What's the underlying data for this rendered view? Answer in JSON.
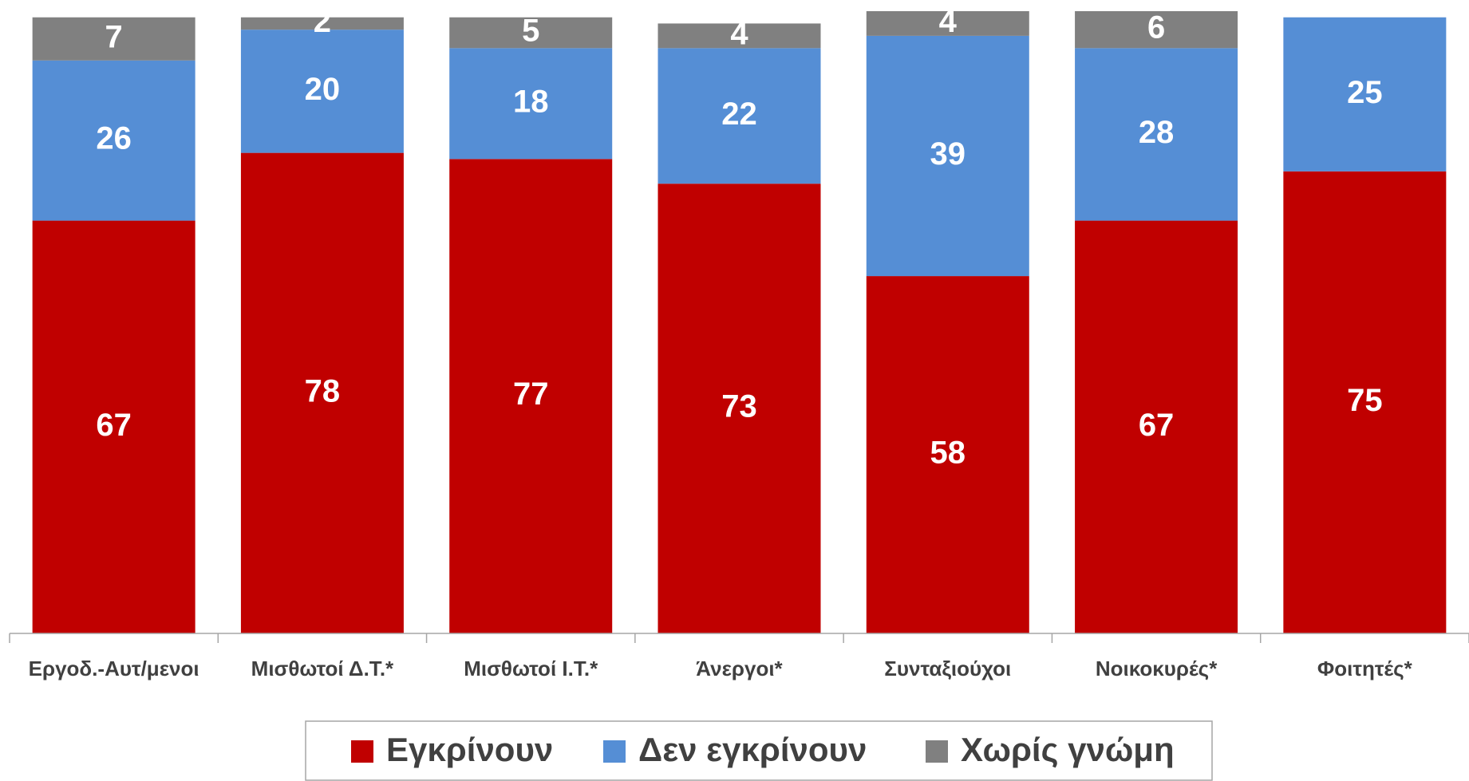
{
  "chart_data": {
    "type": "stacked_bar",
    "categories": [
      "Εργοδ.-Αυτ/μενοι",
      "Μισθωτοί Δ.Τ.*",
      "Μισθωτοί Ι.Τ.*",
      "Άνεργοι*",
      "Συνταξιούχοι",
      "Νοικοκυρές*",
      "Φοιτητές*"
    ],
    "series": [
      {
        "name": "Εγκρίνουν",
        "color": "#c00000",
        "values": [
          67,
          78,
          77,
          73,
          58,
          67,
          75
        ]
      },
      {
        "name": "Δεν εγκρίνουν",
        "color": "#558ed5",
        "values": [
          26,
          20,
          18,
          22,
          39,
          28,
          25
        ]
      },
      {
        "name": "Χωρίς γνώμη",
        "color": "#808080",
        "values": [
          7,
          2,
          5,
          4,
          4,
          6,
          null
        ]
      }
    ],
    "legend": "bottom"
  }
}
